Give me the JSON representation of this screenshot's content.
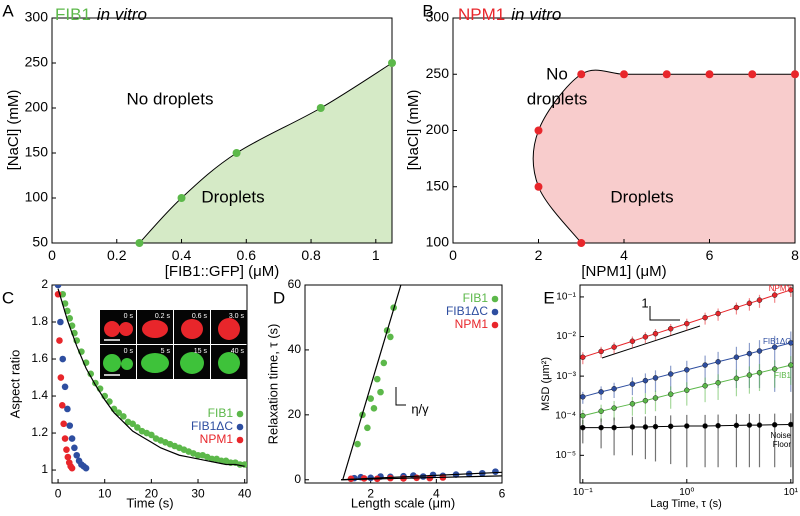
{
  "chart_data": [
    {
      "panel": "A",
      "type": "scatter",
      "title": "FIB1",
      "title_note": "in vitro",
      "xlabel": "[FIB1::GFP] (μM)",
      "ylabel": "[NaCl] (mM)",
      "annotations": [
        "No droplets",
        "Droplets"
      ],
      "region": true,
      "region_color": "#d5eac6",
      "series": [
        {
          "color": "#5cb84a",
          "x": [
            0.27,
            0.4,
            0.57,
            0.83,
            1.05
          ],
          "values": [
            50,
            100,
            150,
            200,
            250
          ]
        }
      ],
      "xlim": [
        0,
        1.05
      ],
      "xticks": [
        0,
        0.2,
        0.4,
        0.6,
        0.8,
        1
      ],
      "ylim": [
        50,
        300
      ],
      "yticks": [
        50,
        100,
        150,
        200,
        250,
        300
      ]
    },
    {
      "panel": "B",
      "type": "scatter",
      "title": "NPM1",
      "title_note": "in vitro",
      "xlabel": "[NPM1] (μM)",
      "ylabel": "[NaCl] (mM)",
      "annotations": [
        "No",
        "droplets",
        "Droplets"
      ],
      "region": true,
      "region_color": "#f8cccc",
      "series": [
        {
          "color": "#e8262b",
          "x": [
            3,
            2,
            2,
            3,
            4,
            5,
            6,
            7,
            8
          ],
          "values": [
            100,
            150,
            200,
            250,
            250,
            250,
            250,
            250,
            250
          ]
        }
      ],
      "xlim": [
        0,
        8
      ],
      "xticks": [
        0,
        2,
        4,
        6,
        8
      ],
      "ylim": [
        100,
        300
      ],
      "yticks": [
        100,
        150,
        200,
        250,
        300
      ]
    },
    {
      "panel": "C",
      "type": "scatter",
      "xlabel": "Time (s)",
      "ylabel": "Aspect ratio",
      "inset_labels": [
        "0 s",
        "0.2 s",
        "0.6 s",
        "3.0 s",
        "0 s",
        "5 s",
        "15 s",
        "40 s"
      ],
      "legend": "center right",
      "series": [
        {
          "name": "FIB1",
          "color": "#5cb84a",
          "x": [
            1,
            1.5,
            2,
            2.5,
            3,
            3.5,
            4,
            5,
            6,
            7,
            8,
            9,
            10,
            11,
            12,
            13,
            14,
            15,
            16,
            17,
            18,
            19,
            20,
            21,
            22,
            23,
            24,
            25,
            26,
            27,
            28,
            29,
            30,
            31,
            32,
            33,
            34,
            35,
            36,
            37,
            38,
            39,
            40
          ],
          "values": [
            1.95,
            1.9,
            1.86,
            1.82,
            1.78,
            1.74,
            1.7,
            1.64,
            1.58,
            1.52,
            1.47,
            1.44,
            1.4,
            1.37,
            1.33,
            1.31,
            1.29,
            1.26,
            1.25,
            1.23,
            1.21,
            1.2,
            1.19,
            1.17,
            1.16,
            1.15,
            1.14,
            1.13,
            1.12,
            1.11,
            1.1,
            1.09,
            1.08,
            1.08,
            1.07,
            1.06,
            1.06,
            1.05,
            1.05,
            1.04,
            1.04,
            1.03,
            1.03
          ]
        },
        {
          "name": "FIB1ΔC",
          "color": "#2e4ea0",
          "x": [
            0,
            0.5,
            1,
            1.5,
            2,
            2.5,
            3,
            3.5,
            4,
            4.5,
            5,
            5.5,
            6
          ],
          "values": [
            2.0,
            1.8,
            1.6,
            1.45,
            1.33,
            1.24,
            1.17,
            1.12,
            1.08,
            1.05,
            1.03,
            1.02,
            1.01
          ]
        },
        {
          "name": "NPM1",
          "color": "#e8262b",
          "x": [
            0,
            0.3,
            0.6,
            0.9,
            1.2,
            1.5,
            1.8,
            2.1,
            2.4,
            2.7,
            3.0
          ],
          "values": [
            1.95,
            1.7,
            1.5,
            1.35,
            1.25,
            1.17,
            1.11,
            1.07,
            1.04,
            1.02,
            1.01
          ]
        },
        {
          "style": "line",
          "color": "#000000",
          "x": [
            0,
            2,
            4,
            6,
            8,
            10,
            12,
            14,
            16,
            18,
            20,
            22,
            24,
            26,
            28,
            30,
            32,
            34,
            36,
            38,
            40
          ],
          "values": [
            1.98,
            1.81,
            1.67,
            1.55,
            1.46,
            1.38,
            1.31,
            1.26,
            1.21,
            1.18,
            1.15,
            1.12,
            1.1,
            1.08,
            1.07,
            1.06,
            1.05,
            1.04,
            1.03,
            1.03,
            1.02
          ]
        }
      ],
      "xlim": [
        -1.3,
        40.5
      ],
      "xticks": [
        0,
        10,
        20,
        30,
        40
      ],
      "ylim": [
        0.93,
        2
      ],
      "yticks": [
        1,
        1.2,
        1.4,
        1.6,
        1.8,
        2
      ]
    },
    {
      "panel": "D",
      "type": "scatter",
      "xlabel": "Length scale (μm)",
      "ylabel": "Relaxation time, τ (s)",
      "annotations": [
        "η/γ"
      ],
      "legend": "upper right",
      "series": [
        {
          "name": "FIB1",
          "color": "#5cb84a",
          "x": [
            1.6,
            1.75,
            1.9,
            2.0,
            2.1,
            2.2,
            2.3,
            2.4,
            2.5,
            2.6,
            2.7
          ],
          "values": [
            11,
            20,
            16,
            25,
            22,
            31,
            27,
            36,
            46,
            44,
            53
          ]
        },
        {
          "name": "FIB1ΔC",
          "color": "#2e4ea0",
          "x": [
            1.5,
            1.7,
            2.0,
            2.3,
            2.6,
            3.0,
            3.3,
            3.6,
            3.9,
            4.2,
            4.6,
            5.0,
            5.4,
            5.8
          ],
          "values": [
            0.5,
            0.8,
            0.6,
            1.0,
            0.9,
            1.1,
            1.3,
            1.0,
            1.5,
            1.2,
            1.6,
            1.8,
            2.0,
            2.5
          ]
        },
        {
          "name": "NPM1",
          "color": "#e8262b",
          "x": [
            1.4,
            1.8,
            2.2,
            2.6,
            3.0,
            3.4,
            3.8,
            4.2
          ],
          "values": [
            0.3,
            0.4,
            0.3,
            0.5,
            0.4,
            0.6,
            0.5,
            0.7
          ]
        },
        {
          "style": "line",
          "color": "#000000",
          "x": [
            1.15,
            2.92
          ],
          "values": [
            0,
            60
          ]
        },
        {
          "style": "line",
          "color": "#000000",
          "x": [
            1.1,
            6
          ],
          "values": [
            0,
            2.3
          ]
        },
        {
          "style": "line",
          "color": "#000000",
          "x": [
            1.1,
            6
          ],
          "values": [
            0,
            1.2
          ]
        }
      ],
      "xlim": [
        0,
        6
      ],
      "xticks": [
        2,
        4,
        6
      ],
      "ylim": [
        -1,
        60
      ],
      "yticks": [
        0,
        20,
        40,
        60
      ]
    },
    {
      "panel": "E",
      "type": "errorbar",
      "xlabel": "Lag Time, τ (s)",
      "ylabel": "MSD (μm²)",
      "annotations": [
        "1"
      ],
      "legend": "inline",
      "xscale": "log",
      "yscale": "log",
      "x": [
        0.1,
        0.15,
        0.2,
        0.3,
        0.4,
        0.5,
        0.7,
        1,
        1.5,
        2,
        3,
        4,
        5,
        7,
        10
      ],
      "series": [
        {
          "name": "NPM1",
          "color": "#e8262b",
          "values": [
            0.003,
            0.0042,
            0.0054,
            0.0076,
            0.0098,
            0.0118,
            0.0157,
            0.0212,
            0.03,
            0.038,
            0.054,
            0.069,
            0.083,
            0.111,
            0.15
          ],
          "errors": [
            0.001,
            0.0013,
            0.0017,
            0.0024,
            0.003,
            0.0037,
            0.005,
            0.007,
            0.01,
            0.013,
            0.018,
            0.024,
            0.03,
            0.04,
            0.05
          ]
        },
        {
          "name": "FIB1ΔC",
          "color": "#2e4ea0",
          "values": [
            0.0003,
            0.0004,
            0.00048,
            0.00063,
            0.00077,
            0.0009,
            0.00113,
            0.00144,
            0.0019,
            0.0023,
            0.003,
            0.0037,
            0.0043,
            0.0054,
            0.0069
          ],
          "errors": [
            0.0001,
            0.00015,
            0.0002,
            0.0003,
            0.0004,
            0.0005,
            0.0007,
            0.001,
            0.0014,
            0.0018,
            0.0025,
            0.0032,
            0.0038,
            0.005,
            0.0065
          ]
        },
        {
          "name": "FIB1",
          "color": "#5cb84a",
          "values": [
            0.0001,
            0.00013,
            0.000156,
            0.0002,
            0.00024,
            0.00028,
            0.00035,
            0.00044,
            0.00057,
            0.00068,
            0.00088,
            0.00106,
            0.00122,
            0.00151,
            0.0019
          ],
          "errors": [
            4e-05,
            6e-05,
            8e-05,
            0.0001,
            0.00013,
            0.00015,
            0.0002,
            0.00026,
            0.00035,
            0.00043,
            0.00057,
            0.0007,
            0.0008,
            0.001,
            0.0013
          ]
        },
        {
          "name": "Noise Floor",
          "color": "#000000",
          "values": [
            5e-05,
            5e-05,
            5e-05,
            5.2e-05,
            5.2e-05,
            5.3e-05,
            5.4e-05,
            5.5e-05,
            5.5e-05,
            5.6e-05,
            5.7e-05,
            5.8e-05,
            5.8e-05,
            5.9e-05,
            6e-05
          ],
          "errors": [
            3e-05,
            3.5e-05,
            4e-05,
            4.2e-05,
            4.4e-05,
            4.6e-05,
            4.8e-05,
            5e-05,
            5e-05,
            5.1e-05,
            5.2e-05,
            5.3e-05,
            5.3e-05,
            5.4e-05,
            5.5e-05
          ]
        }
      ],
      "xlim": [
        0.094,
        10.5
      ],
      "xticks": [
        {
          "value": 0.1,
          "label": "10⁻¹"
        },
        {
          "value": 1,
          "label": "10⁰"
        },
        {
          "value": 10,
          "label": "10¹"
        }
      ],
      "ylim": [
        2e-06,
        0.2
      ],
      "yticks": [
        {
          "value": 1e-05,
          "label": "10⁻⁵"
        },
        {
          "value": 0.0001,
          "label": "10⁻⁴"
        },
        {
          "value": 0.001,
          "label": "10⁻³"
        },
        {
          "value": 0.01,
          "label": "10⁻²"
        },
        {
          "value": 0.1,
          "label": "10⁻¹"
        }
      ]
    }
  ]
}
